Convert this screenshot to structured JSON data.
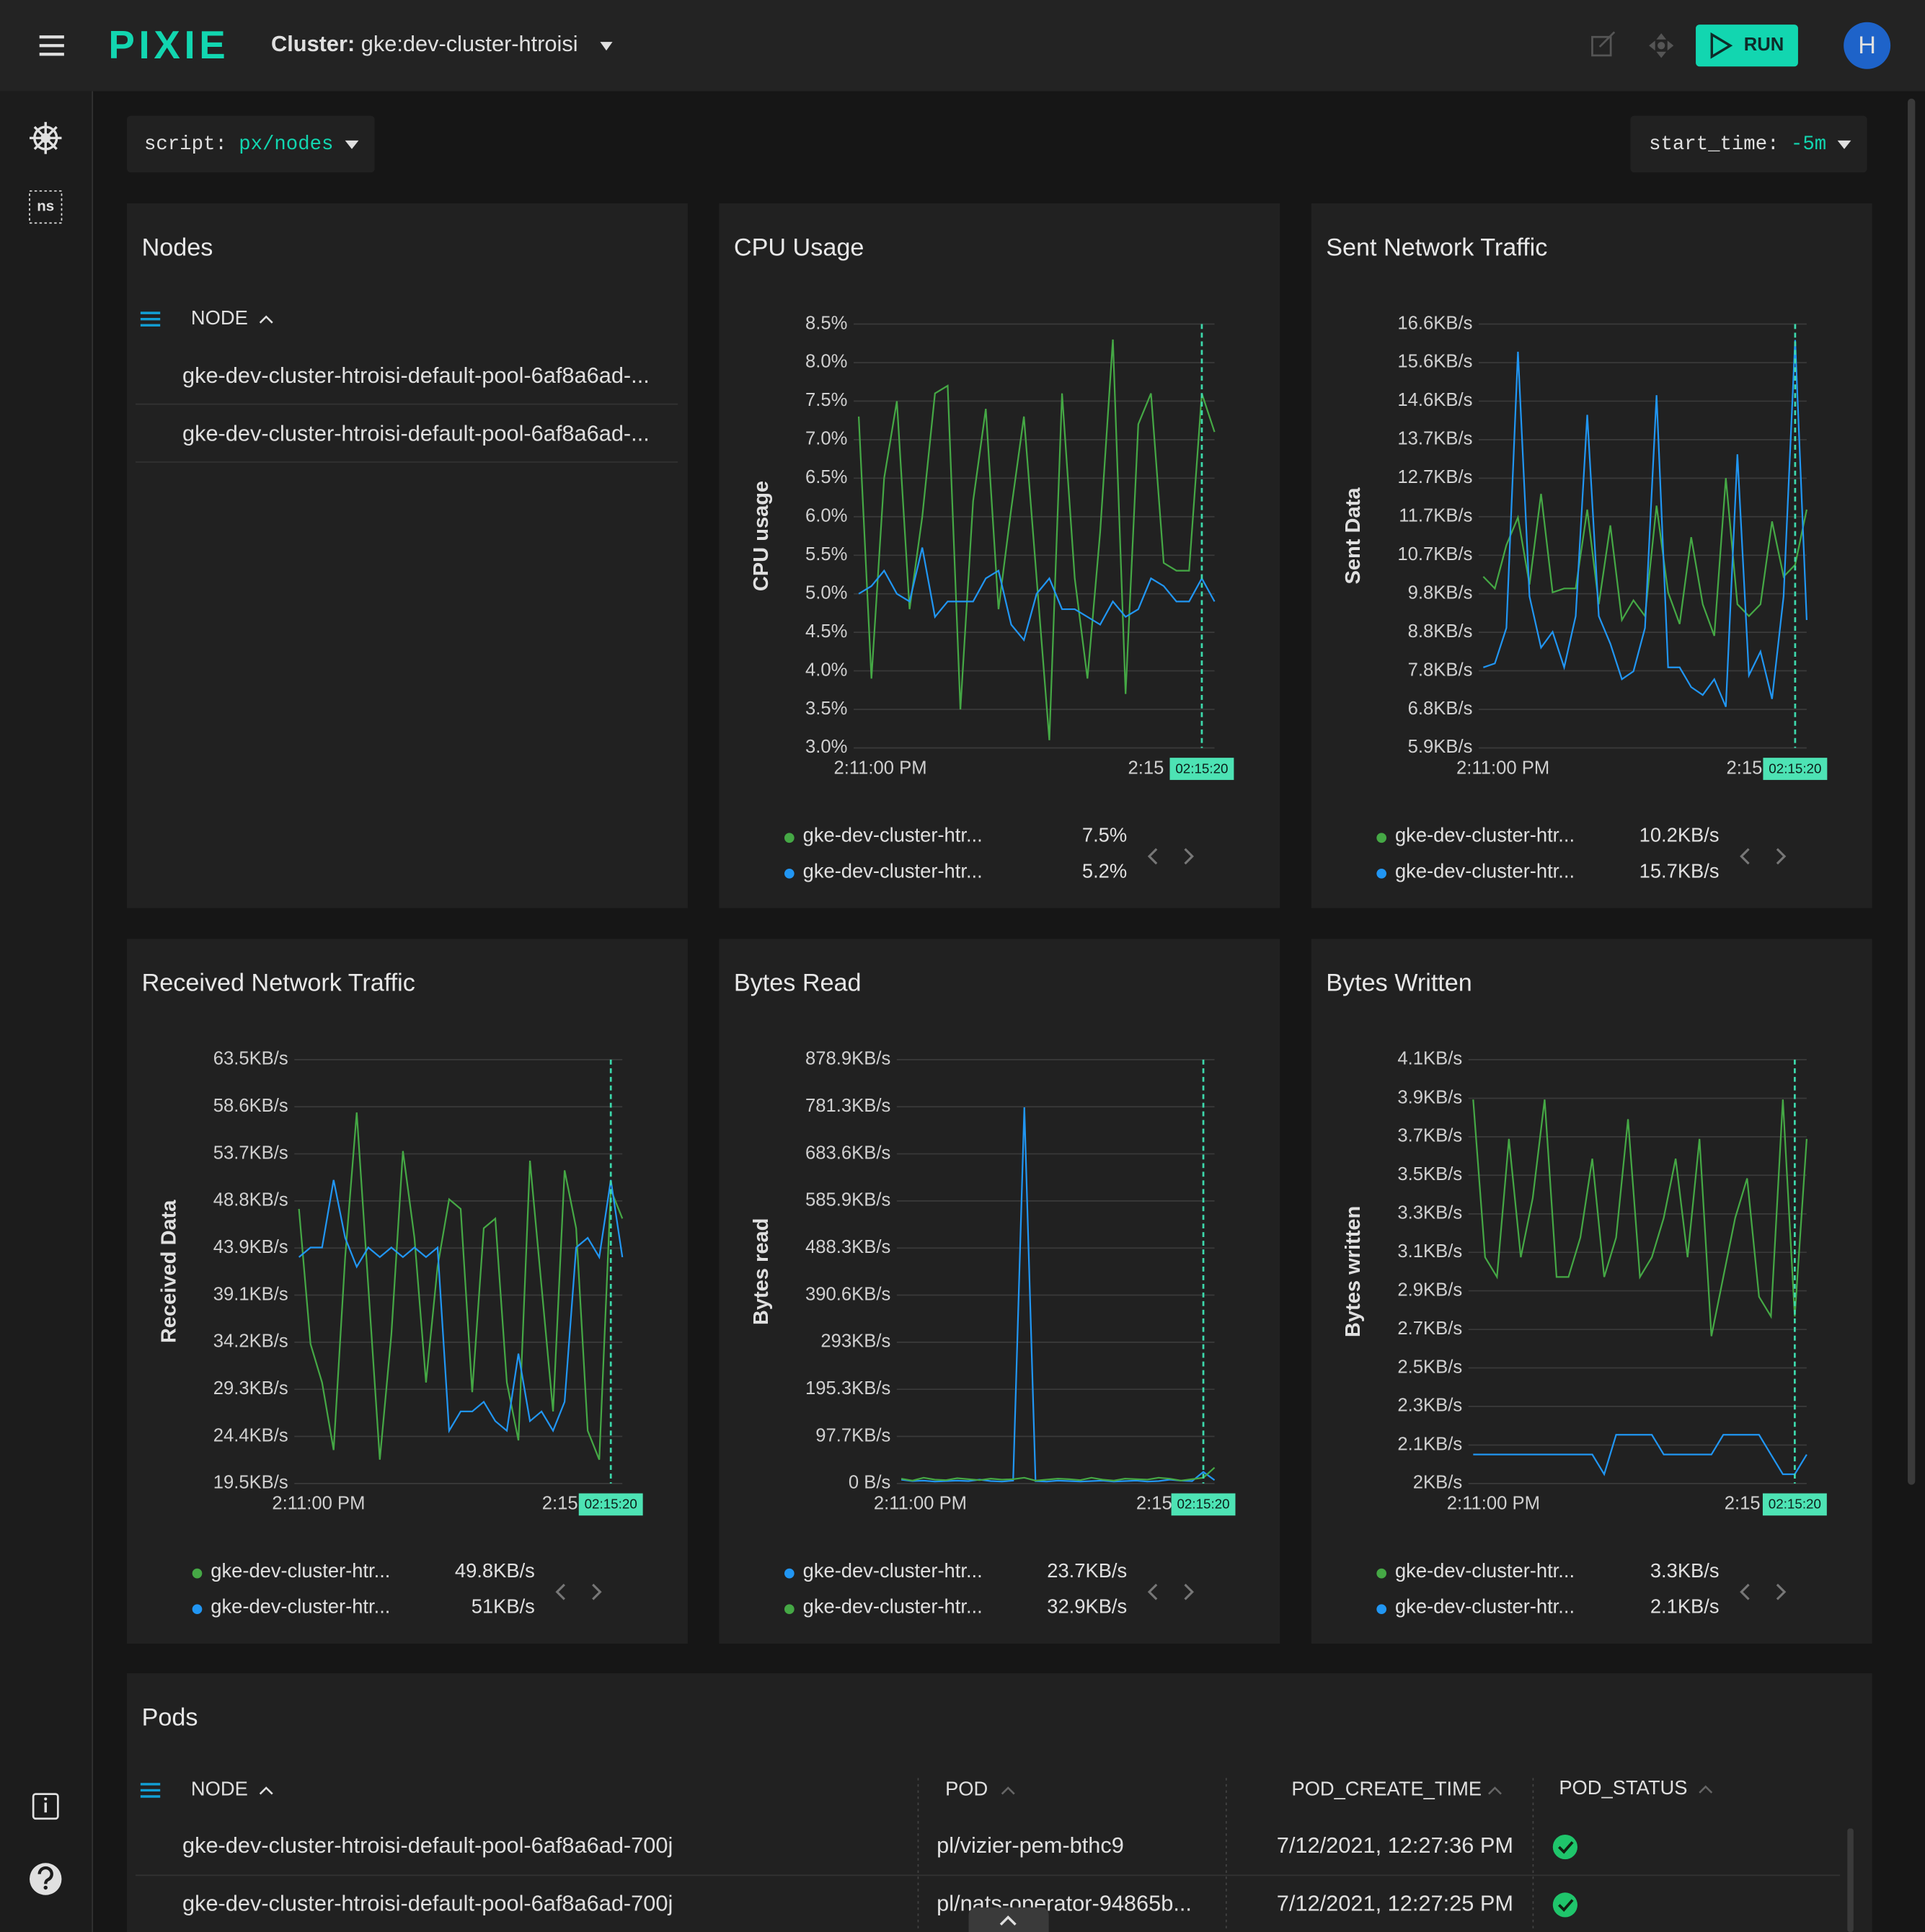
{
  "header": {
    "logo": "PIXIE",
    "cluster_label": "Cluster:",
    "cluster_name": "gke:dev-cluster-htroisi",
    "run": "RUN",
    "avatar": "H"
  },
  "sidebar": {
    "namespace": "ns"
  },
  "toolbar": {
    "script_key": "script:",
    "script_value": "px/nodes",
    "start_key": "start_time:",
    "start_value": "-5m"
  },
  "nodes_panel": {
    "title": "Nodes",
    "column": "NODE",
    "rows": [
      "gke-dev-cluster-htroisi-default-pool-6af8a6ad-...",
      "gke-dev-cluster-htroisi-default-pool-6af8a6ad-..."
    ]
  },
  "chart_data": [
    {
      "type": "line",
      "title": "CPU Usage",
      "y_label": "CPU usage",
      "xlim": [
        -0.4,
        28
      ],
      "xticks": [
        {
          "value": 1.7,
          "label": "2:11:00 PM"
        },
        {
          "value": 22.6,
          "label": "2:15"
        }
      ],
      "cursor": {
        "value": 27,
        "label": "02:15:20"
      },
      "ylim": [
        3,
        8.5
      ],
      "yticks": [
        {
          "value": 3,
          "label": "3.0%"
        },
        {
          "value": 3.5,
          "label": "3.5%"
        },
        {
          "value": 4,
          "label": "4.0%"
        },
        {
          "value": 4.5,
          "label": "4.5%"
        },
        {
          "value": 5,
          "label": "5.0%"
        },
        {
          "value": 5.5,
          "label": "5.5%"
        },
        {
          "value": 6,
          "label": "6.0%"
        },
        {
          "value": 6.5,
          "label": "6.5%"
        },
        {
          "value": 7,
          "label": "7.0%"
        },
        {
          "value": 7.5,
          "label": "7.5%"
        },
        {
          "value": 8,
          "label": "8.0%"
        },
        {
          "value": 8.5,
          "label": "8.5%"
        }
      ],
      "grid": true,
      "series": [
        {
          "name": "gke-dev-cluster-htr...",
          "color": "#45a845",
          "legend_value": "7.5%",
          "values": [
            7.3,
            3.9,
            6.5,
            7.5,
            4.8,
            6.0,
            7.6,
            7.7,
            3.5,
            6.2,
            7.4,
            4.8,
            6.1,
            7.3,
            5.2,
            3.1,
            7.6,
            5.2,
            3.9,
            5.8,
            8.3,
            3.7,
            7.2,
            7.6,
            5.4,
            5.3,
            5.3,
            7.6,
            7.1
          ]
        },
        {
          "name": "gke-dev-cluster-htr...",
          "color": "#2196f3",
          "legend_value": "5.2%",
          "values": [
            5.0,
            5.1,
            5.3,
            5.0,
            4.9,
            5.6,
            4.7,
            4.9,
            4.9,
            4.9,
            5.2,
            5.3,
            4.6,
            4.4,
            5.0,
            5.2,
            4.8,
            4.8,
            4.7,
            4.6,
            4.9,
            4.7,
            4.8,
            5.2,
            5.1,
            4.9,
            4.9,
            5.2,
            4.9
          ]
        }
      ]
    },
    {
      "type": "line",
      "title": "Sent Network Traffic",
      "y_label": "Sent Data",
      "xlim": [
        -0.4,
        28
      ],
      "xticks": [
        {
          "value": 1.7,
          "label": "2:11:00 PM"
        },
        {
          "value": 22.6,
          "label": "2:15"
        }
      ],
      "cursor": {
        "value": 27,
        "label": "02:15:20"
      },
      "ylim": [
        5.859,
        16.602
      ],
      "yticks": [
        {
          "value": 5.859,
          "label": "5.9KB/s"
        },
        {
          "value": 6.836,
          "label": "6.8KB/s"
        },
        {
          "value": 7.813,
          "label": "7.8KB/s"
        },
        {
          "value": 8.789,
          "label": "8.8KB/s"
        },
        {
          "value": 9.766,
          "label": "9.8KB/s"
        },
        {
          "value": 10.742,
          "label": "10.7KB/s"
        },
        {
          "value": 11.719,
          "label": "11.7KB/s"
        },
        {
          "value": 12.695,
          "label": "12.7KB/s"
        },
        {
          "value": 13.672,
          "label": "13.7KB/s"
        },
        {
          "value": 14.648,
          "label": "14.6KB/s"
        },
        {
          "value": 15.625,
          "label": "15.6KB/s"
        },
        {
          "value": 16.602,
          "label": "16.6KB/s"
        }
      ],
      "grid": true,
      "series": [
        {
          "name": "gke-dev-cluster-htr...",
          "color": "#45a845",
          "legend_value": "10.2KB/s",
          "values": [
            10.2,
            9.9,
            11.0,
            11.7,
            10.0,
            12.3,
            9.8,
            9.9,
            9.9,
            11.9,
            9.5,
            11.5,
            9.1,
            9.6,
            9.2,
            12.0,
            9.8,
            9.0,
            11.2,
            9.5,
            8.7,
            12.7,
            9.5,
            9.2,
            9.5,
            11.6,
            10.2,
            10.5,
            11.9
          ]
        },
        {
          "name": "gke-dev-cluster-htr...",
          "color": "#2196f3",
          "legend_value": "15.7KB/s",
          "values": [
            7.9,
            8.0,
            8.9,
            15.9,
            9.7,
            8.4,
            8.8,
            7.9,
            9.2,
            14.3,
            9.2,
            8.5,
            7.6,
            7.8,
            8.9,
            14.8,
            7.9,
            7.9,
            7.4,
            7.2,
            7.6,
            6.9,
            13.3,
            7.7,
            8.3,
            7.1,
            9.7,
            16.2,
            9.1
          ]
        }
      ]
    },
    {
      "type": "line",
      "title": "Received Network Traffic",
      "y_label": "Received Data",
      "xlim": [
        -0.4,
        28
      ],
      "xticks": [
        {
          "value": 1.7,
          "label": "2:11:00 PM"
        },
        {
          "value": 22.6,
          "label": "2:15"
        }
      ],
      "cursor": {
        "value": 27,
        "label": "02:15:20"
      },
      "ylim": [
        19.531,
        63.477
      ],
      "yticks": [
        {
          "value": 19.531,
          "label": "19.5KB/s"
        },
        {
          "value": 24.414,
          "label": "24.4KB/s"
        },
        {
          "value": 29.297,
          "label": "29.3KB/s"
        },
        {
          "value": 34.18,
          "label": "34.2KB/s"
        },
        {
          "value": 39.063,
          "label": "39.1KB/s"
        },
        {
          "value": 43.945,
          "label": "43.9KB/s"
        },
        {
          "value": 48.828,
          "label": "48.8KB/s"
        },
        {
          "value": 53.711,
          "label": "53.7KB/s"
        },
        {
          "value": 58.594,
          "label": "58.6KB/s"
        },
        {
          "value": 63.477,
          "label": "63.5KB/s"
        }
      ],
      "grid": true,
      "series": [
        {
          "name": "gke-dev-cluster-htr...",
          "color": "#45a845",
          "legend_value": "49.8KB/s",
          "values": [
            48,
            34,
            30,
            23,
            43,
            58,
            40,
            22,
            35,
            54,
            45,
            30,
            42,
            49,
            48,
            29,
            46,
            47,
            30,
            24,
            53,
            40,
            27,
            52,
            46,
            25,
            22,
            50,
            47
          ]
        },
        {
          "name": "gke-dev-cluster-htr...",
          "color": "#2196f3",
          "legend_value": "51KB/s",
          "values": [
            43,
            44,
            44,
            51,
            45,
            42,
            44,
            43,
            44,
            43,
            44,
            43,
            44,
            25,
            27,
            27,
            28,
            26,
            25,
            33,
            26,
            27,
            25,
            28,
            44,
            45,
            43,
            51,
            43
          ]
        }
      ]
    },
    {
      "type": "line",
      "title": "Bytes Read",
      "y_label": "Bytes read",
      "xlim": [
        -0.4,
        28
      ],
      "xticks": [
        {
          "value": 1.7,
          "label": "2:11:00 PM"
        },
        {
          "value": 22.6,
          "label": "2:15"
        }
      ],
      "cursor": {
        "value": 27,
        "label": "02:15:20"
      },
      "ylim": [
        0,
        878.906
      ],
      "yticks": [
        {
          "value": 0,
          "label": "0 B/s"
        },
        {
          "value": 97.656,
          "label": "97.7KB/s"
        },
        {
          "value": 195.313,
          "label": "195.3KB/s"
        },
        {
          "value": 292.969,
          "label": "293KB/s"
        },
        {
          "value": 390.625,
          "label": "390.6KB/s"
        },
        {
          "value": 488.281,
          "label": "488.3KB/s"
        },
        {
          "value": 585.938,
          "label": "585.9KB/s"
        },
        {
          "value": 683.594,
          "label": "683.6KB/s"
        },
        {
          "value": 781.25,
          "label": "781.3KB/s"
        },
        {
          "value": 878.906,
          "label": "878.9KB/s"
        }
      ],
      "grid": true,
      "series": [
        {
          "name": "gke-dev-cluster-htr...",
          "color": "#2196f3",
          "legend_value": "23.7KB/s",
          "values": [
            8,
            5,
            6,
            4,
            5,
            6,
            5,
            8,
            5,
            4,
            6,
            780,
            5,
            4,
            6,
            5,
            4,
            5,
            6,
            4,
            5,
            6,
            4,
            5,
            8,
            6,
            5,
            24,
            7
          ]
        },
        {
          "name": "gke-dev-cluster-htr...",
          "color": "#45a845",
          "legend_value": "32.9KB/s",
          "values": [
            10,
            6,
            12,
            8,
            7,
            11,
            9,
            7,
            10,
            8,
            9,
            12,
            6,
            8,
            10,
            9,
            7,
            12,
            8,
            6,
            10,
            9,
            8,
            12,
            10,
            6,
            9,
            12,
            33
          ]
        }
      ]
    },
    {
      "type": "line",
      "title": "Bytes Written",
      "y_label": "Bytes written",
      "xlim": [
        -0.4,
        28
      ],
      "xticks": [
        {
          "value": 1.7,
          "label": "2:11:00 PM"
        },
        {
          "value": 22.6,
          "label": "2:15"
        }
      ],
      "cursor": {
        "value": 27,
        "label": "02:15:20"
      },
      "ylim": [
        1.953,
        4.102
      ],
      "yticks": [
        {
          "value": 1.953,
          "label": "2KB/s"
        },
        {
          "value": 2.148,
          "label": "2.1KB/s"
        },
        {
          "value": 2.344,
          "label": "2.3KB/s"
        },
        {
          "value": 2.539,
          "label": "2.5KB/s"
        },
        {
          "value": 2.734,
          "label": "2.7KB/s"
        },
        {
          "value": 2.93,
          "label": "2.9KB/s"
        },
        {
          "value": 3.125,
          "label": "3.1KB/s"
        },
        {
          "value": 3.32,
          "label": "3.3KB/s"
        },
        {
          "value": 3.516,
          "label": "3.5KB/s"
        },
        {
          "value": 3.711,
          "label": "3.7KB/s"
        },
        {
          "value": 3.906,
          "label": "3.9KB/s"
        },
        {
          "value": 4.102,
          "label": "4.1KB/s"
        }
      ],
      "grid": true,
      "series": [
        {
          "name": "gke-dev-cluster-htr...",
          "color": "#45a845",
          "legend_value": "3.3KB/s",
          "values": [
            3.9,
            3.1,
            3.0,
            3.7,
            3.1,
            3.4,
            3.9,
            3.0,
            3.0,
            3.2,
            3.6,
            3.0,
            3.2,
            3.8,
            3.0,
            3.1,
            3.3,
            3.6,
            3.1,
            3.7,
            2.7,
            3.0,
            3.3,
            3.5,
            2.9,
            2.8,
            3.9,
            2.8,
            3.7
          ]
        },
        {
          "name": "gke-dev-cluster-htr...",
          "color": "#2196f3",
          "legend_value": "2.1KB/s",
          "values": [
            2.1,
            2.1,
            2.1,
            2.1,
            2.1,
            2.1,
            2.1,
            2.1,
            2.1,
            2.1,
            2.1,
            2.0,
            2.2,
            2.2,
            2.2,
            2.2,
            2.1,
            2.1,
            2.1,
            2.1,
            2.1,
            2.2,
            2.2,
            2.2,
            2.2,
            2.1,
            2.0,
            2.0,
            2.1
          ]
        }
      ]
    }
  ],
  "pods": {
    "title": "Pods",
    "columns": [
      "NODE",
      "POD",
      "POD_CREATE_TIME",
      "POD_STATUS"
    ],
    "rows": [
      [
        "gke-dev-cluster-htroisi-default-pool-6af8a6ad-700j",
        "pl/vizier-pem-bthc9",
        "7/12/2021, 12:27:36 PM"
      ],
      [
        "gke-dev-cluster-htroisi-default-pool-6af8a6ad-700j",
        "pl/nats-operator-94865b...",
        "7/12/2021, 12:27:25 PM"
      ]
    ]
  }
}
